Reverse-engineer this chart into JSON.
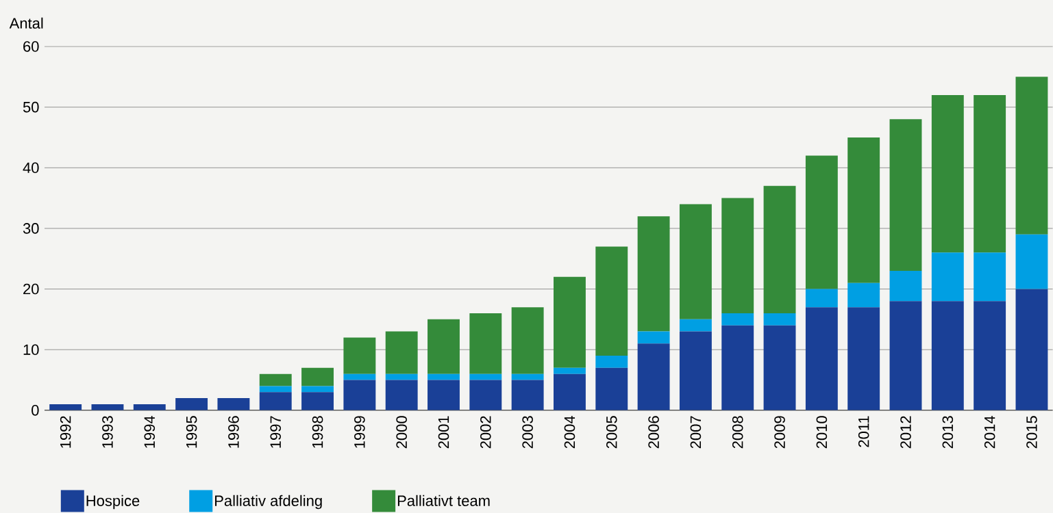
{
  "chart_data": {
    "type": "bar",
    "stacked": true,
    "ylabel": "Antal",
    "categories": [
      "1992",
      "1993",
      "1994",
      "1995",
      "1996",
      "1997",
      "1998",
      "1999",
      "2000",
      "2001",
      "2002",
      "2003",
      "2004",
      "2005",
      "2006",
      "2007",
      "2008",
      "2009",
      "2010",
      "2011",
      "2012",
      "2013",
      "2014",
      "2015"
    ],
    "series": [
      {
        "name": "Hospice",
        "color": "#1a4097",
        "values": [
          1,
          1,
          1,
          2,
          2,
          3,
          3,
          5,
          5,
          5,
          5,
          5,
          6,
          7,
          11,
          13,
          14,
          14,
          17,
          17,
          18,
          18,
          18,
          20
        ]
      },
      {
        "name": "Palliativ afdeling",
        "color": "#009fe3",
        "values": [
          0,
          0,
          0,
          0,
          0,
          1,
          1,
          1,
          1,
          1,
          1,
          1,
          1,
          2,
          2,
          2,
          2,
          2,
          3,
          4,
          5,
          8,
          8,
          9
        ]
      },
      {
        "name": "Palliativt team",
        "color": "#348b3a",
        "values": [
          0,
          0,
          0,
          0,
          0,
          2,
          3,
          6,
          7,
          9,
          10,
          11,
          15,
          18,
          19,
          19,
          19,
          21,
          22,
          24,
          25,
          26,
          26,
          26
        ]
      }
    ],
    "ylim": [
      0,
      60
    ],
    "yticks": [
      0,
      10,
      20,
      30,
      40,
      50,
      60
    ],
    "grid": "y",
    "legend": "bottom left"
  }
}
